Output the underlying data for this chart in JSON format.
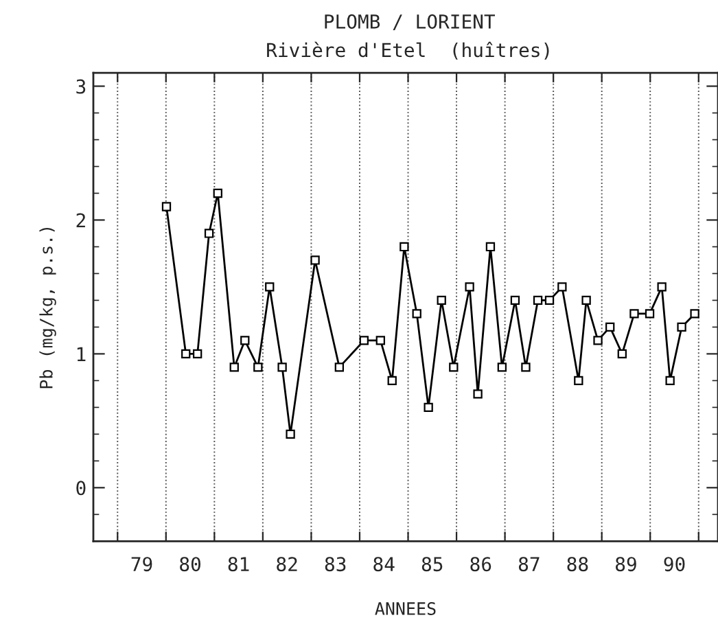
{
  "chart_data": {
    "type": "line",
    "title": "PLOMB / LORIENT",
    "subtitle": "Rivière d'Etel  (huîtres)",
    "xlabel": "ANNEES",
    "ylabel": "Pb (mg/kg, p.s.)",
    "x": [
      80.01,
      80.41,
      80.65,
      80.89,
      81.07,
      81.41,
      81.63,
      81.9,
      82.14,
      82.4,
      82.57,
      83.08,
      83.58,
      84.09,
      84.43,
      84.67,
      84.92,
      85.18,
      85.42,
      85.69,
      85.94,
      86.27,
      86.44,
      86.7,
      86.94,
      87.21,
      87.43,
      87.68,
      87.92,
      88.18,
      88.52,
      88.68,
      88.92,
      89.17,
      89.42,
      89.67,
      89.99,
      90.24,
      90.41,
      90.65,
      90.92
    ],
    "series": [
      {
        "color": "#000000",
        "values": [
          2.1,
          1.0,
          1.0,
          1.9,
          2.2,
          0.9,
          1.1,
          0.9,
          1.5,
          0.9,
          0.4,
          1.7,
          0.9,
          1.1,
          1.1,
          0.8,
          1.8,
          1.3,
          0.6,
          1.4,
          0.9,
          1.5,
          0.7,
          1.8,
          0.9,
          1.4,
          0.9,
          1.4,
          1.4,
          1.5,
          0.8,
          1.4,
          1.1,
          1.2,
          1.0,
          1.3,
          1.3,
          1.5,
          0.8,
          1.2,
          1.3
        ]
      }
    ],
    "xlim": [
      78.5,
      91.4
    ],
    "xticks": [
      {
        "value": 79,
        "label": null
      },
      {
        "value": 79.5,
        "label": "79"
      },
      {
        "value": 80,
        "label": null
      },
      {
        "value": 80.5,
        "label": "80"
      },
      {
        "value": 81,
        "label": null
      },
      {
        "value": 81.5,
        "label": "81"
      },
      {
        "value": 82,
        "label": null
      },
      {
        "value": 82.5,
        "label": "82"
      },
      {
        "value": 83,
        "label": null
      },
      {
        "value": 83.5,
        "label": "83"
      },
      {
        "value": 84,
        "label": null
      },
      {
        "value": 84.5,
        "label": "84"
      },
      {
        "value": 85,
        "label": null
      },
      {
        "value": 85.5,
        "label": "85"
      },
      {
        "value": 86,
        "label": null
      },
      {
        "value": 86.5,
        "label": "86"
      },
      {
        "value": 87,
        "label": null
      },
      {
        "value": 87.5,
        "label": "87"
      },
      {
        "value": 88,
        "label": null
      },
      {
        "value": 88.5,
        "label": "88"
      },
      {
        "value": 89,
        "label": null
      },
      {
        "value": 89.5,
        "label": "89"
      },
      {
        "value": 90,
        "label": null
      },
      {
        "value": 90.5,
        "label": "90"
      },
      {
        "value": 91,
        "label": null
      }
    ],
    "ylim": [
      -0.4,
      3.1
    ],
    "yticks": [
      0,
      1,
      2,
      3
    ],
    "grid": "x",
    "marker": "square",
    "line_style": "solid"
  }
}
